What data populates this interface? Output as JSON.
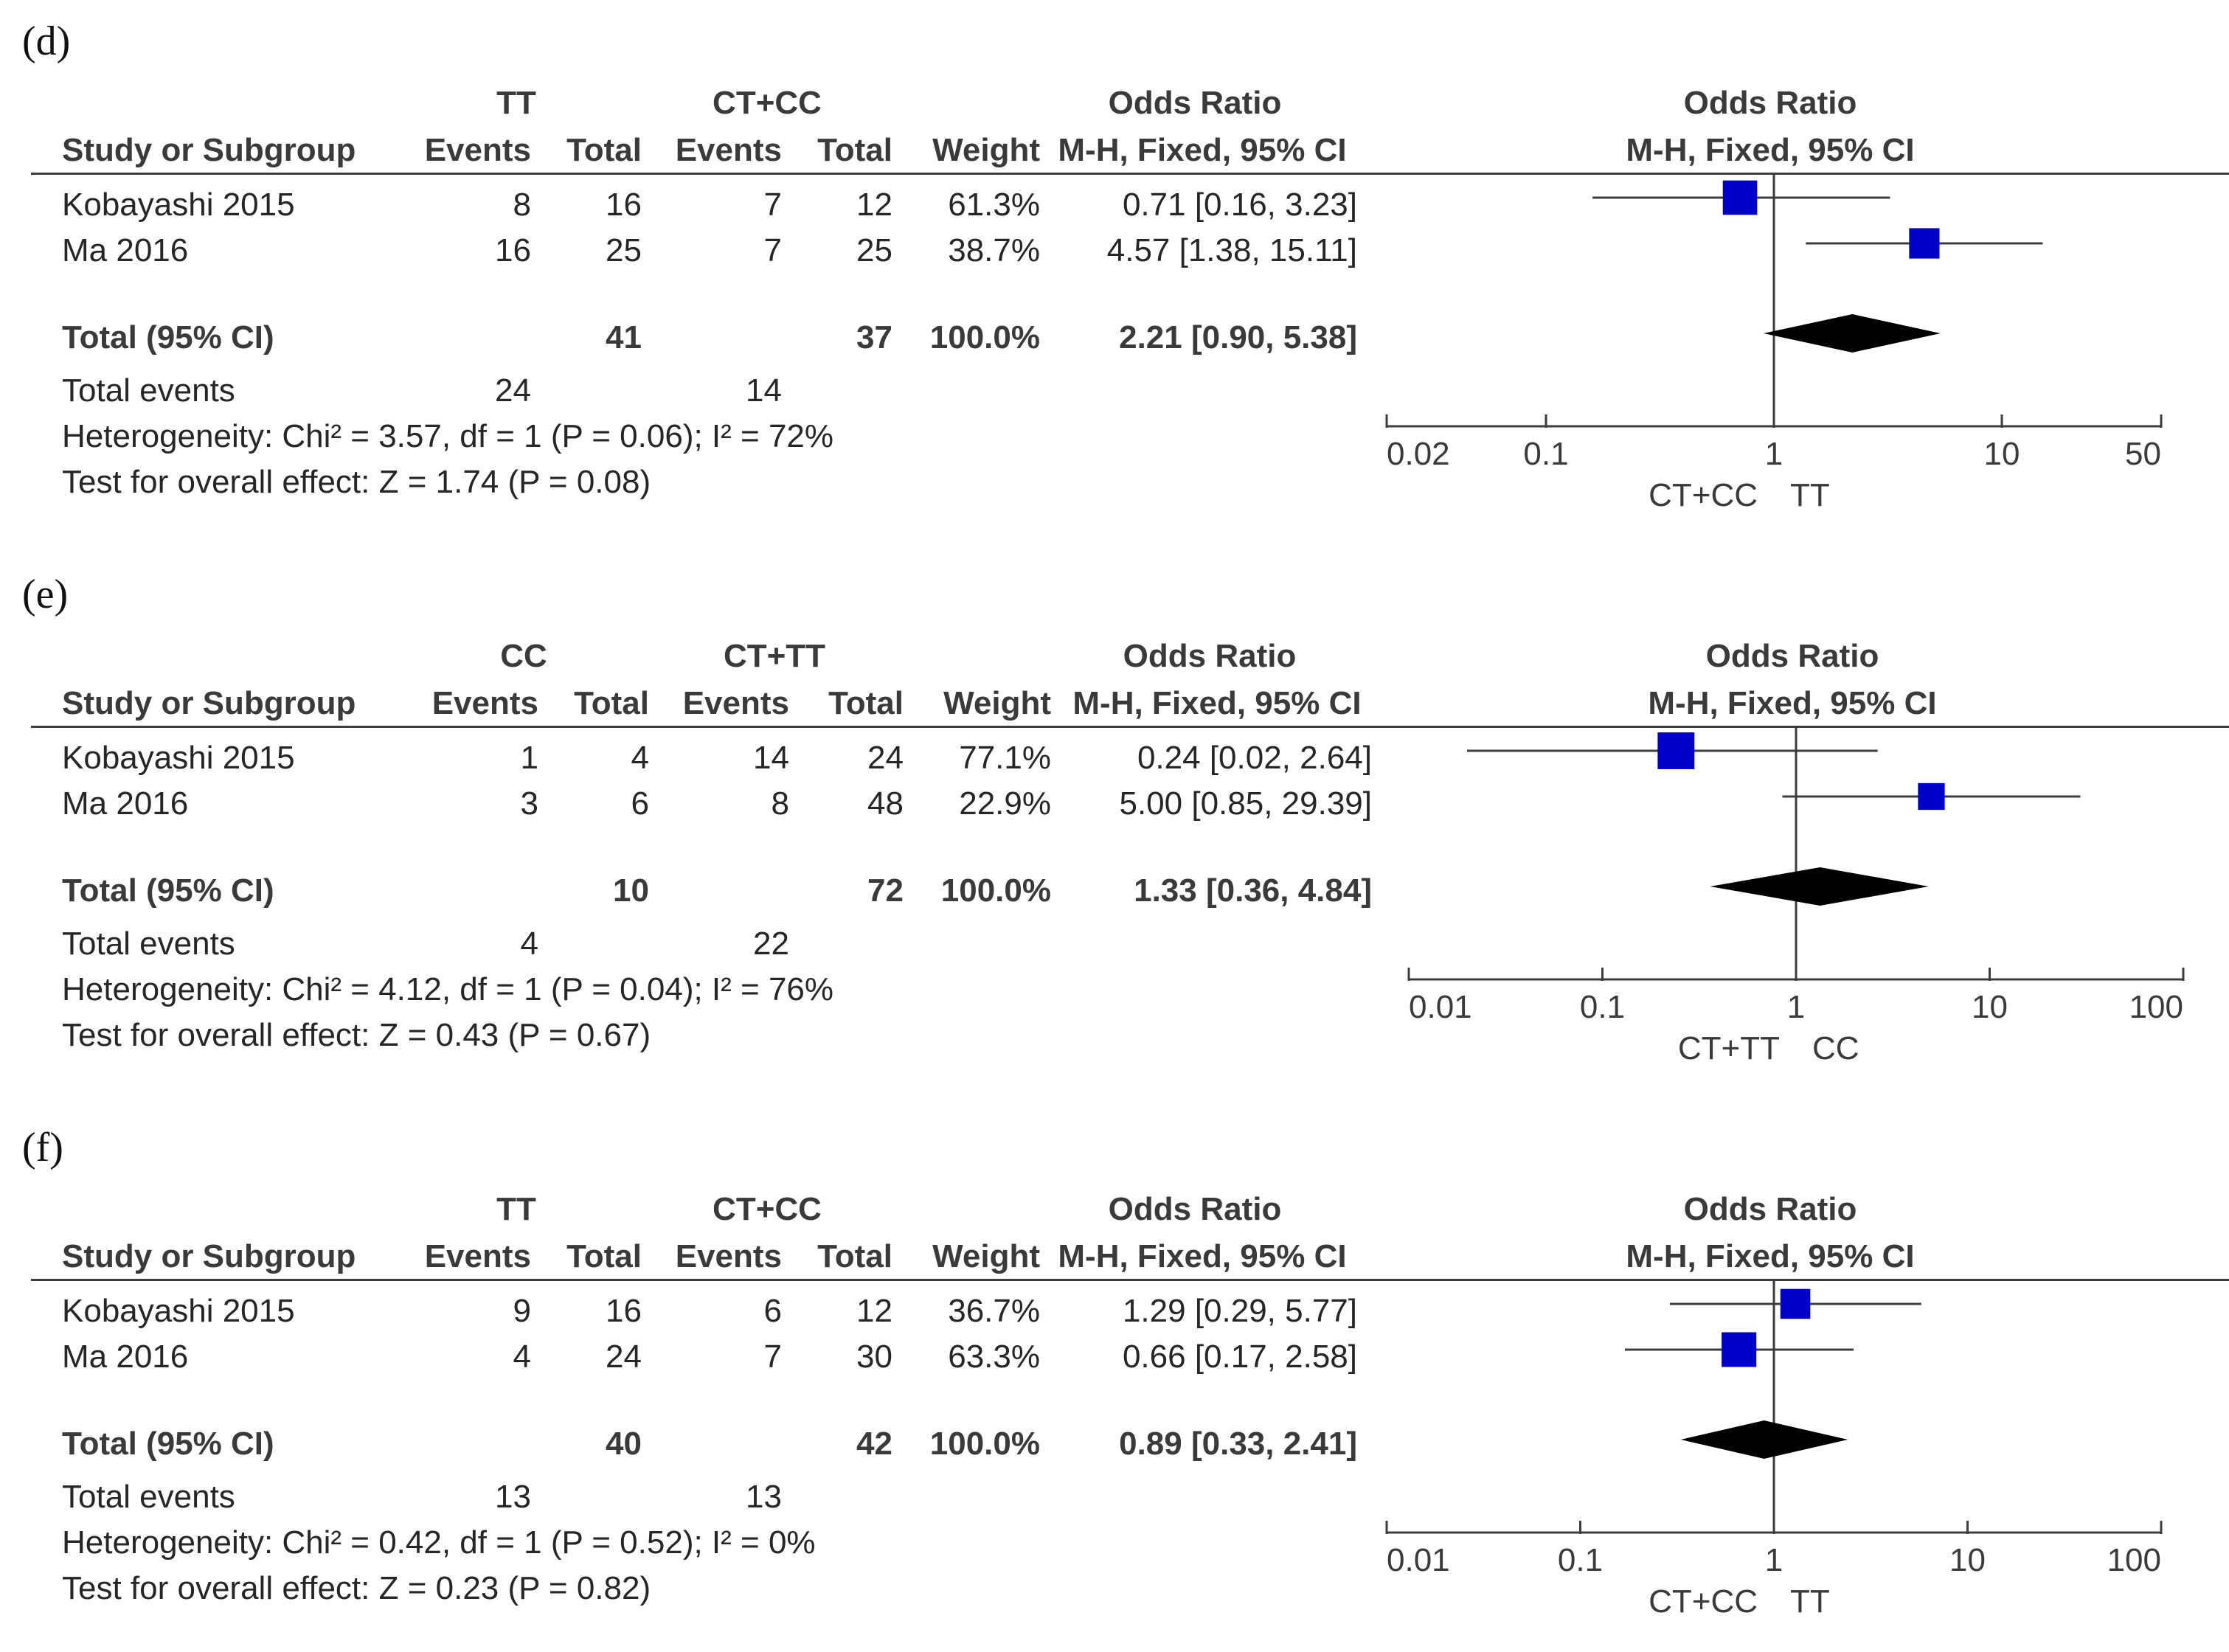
{
  "chart_data": [
    {
      "type": "forest",
      "panel_label": "(d)",
      "group1": "TT",
      "group2": "CT+CC",
      "headers": {
        "study": "Study or Subgroup",
        "events": "Events",
        "total": "Total",
        "weight": "Weight",
        "or_title": "Odds Ratio",
        "or_method": "M-H, Fixed, 95% CI"
      },
      "studies": [
        {
          "name": "Kobayashi 2015",
          "e1": "8",
          "t1": "16",
          "e2": "7",
          "t2": "12",
          "weight": "61.3%",
          "ci_text": "0.71 [0.16, 3.23]",
          "or": 0.71,
          "lo": 0.16,
          "hi": 3.23,
          "w": 61.3
        },
        {
          "name": "Ma 2016",
          "e1": "16",
          "t1": "25",
          "e2": "7",
          "t2": "25",
          "weight": "38.7%",
          "ci_text": "4.57 [1.38, 15.11]",
          "or": 4.57,
          "lo": 1.38,
          "hi": 15.11,
          "w": 38.7
        }
      ],
      "total": {
        "label": "Total (95% CI)",
        "t1": "41",
        "t2": "37",
        "weight": "100.0%",
        "ci_text": "2.21 [0.90, 5.38]",
        "or": 2.21,
        "lo": 0.9,
        "hi": 5.38
      },
      "total_events": {
        "label": "Total events",
        "e1": "24",
        "e2": "14"
      },
      "heterogeneity": "Heterogeneity: Chi² = 3.57, df = 1 (P = 0.06); I² = 72%",
      "overall": "Test for overall effect: Z = 1.74 (P = 0.08)",
      "axis": {
        "scale": "log",
        "min": 0.02,
        "max": 50,
        "ticks": [
          0.02,
          0.1,
          1,
          10,
          50
        ],
        "tick_labels": [
          "0.02",
          "0.1",
          "1",
          "10",
          "50"
        ],
        "favours_left": "CT+CC",
        "favours_right": "TT"
      }
    },
    {
      "type": "forest",
      "panel_label": "(e)",
      "group1": "CC",
      "group2": "CT+TT",
      "headers": {
        "study": "Study or Subgroup",
        "events": "Events",
        "total": "Total",
        "weight": "Weight",
        "or_title": "Odds Ratio",
        "or_method": "M-H, Fixed, 95% CI"
      },
      "studies": [
        {
          "name": "Kobayashi 2015",
          "e1": "1",
          "t1": "4",
          "e2": "14",
          "t2": "24",
          "weight": "77.1%",
          "ci_text": "0.24 [0.02, 2.64]",
          "or": 0.24,
          "lo": 0.02,
          "hi": 2.64,
          "w": 77.1
        },
        {
          "name": "Ma 2016",
          "e1": "3",
          "t1": "6",
          "e2": "8",
          "t2": "48",
          "weight": "22.9%",
          "ci_text": "5.00 [0.85, 29.39]",
          "or": 5.0,
          "lo": 0.85,
          "hi": 29.39,
          "w": 22.9
        }
      ],
      "total": {
        "label": "Total (95% CI)",
        "t1": "10",
        "t2": "72",
        "weight": "100.0%",
        "ci_text": "1.33 [0.36, 4.84]",
        "or": 1.33,
        "lo": 0.36,
        "hi": 4.84
      },
      "total_events": {
        "label": "Total events",
        "e1": "4",
        "e2": "22"
      },
      "heterogeneity": "Heterogeneity: Chi² = 4.12, df = 1 (P = 0.04); I² = 76%",
      "overall": "Test for overall effect: Z = 0.43 (P = 0.67)",
      "axis": {
        "scale": "log",
        "min": 0.01,
        "max": 100,
        "ticks": [
          0.01,
          0.1,
          1,
          10,
          100
        ],
        "tick_labels": [
          "0.01",
          "0.1",
          "1",
          "10",
          "100"
        ],
        "favours_left": "CT+TT",
        "favours_right": "CC"
      }
    },
    {
      "type": "forest",
      "panel_label": "(f)",
      "group1": "TT",
      "group2": "CT+CC",
      "headers": {
        "study": "Study or Subgroup",
        "events": "Events",
        "total": "Total",
        "weight": "Weight",
        "or_title": "Odds Ratio",
        "or_method": "M-H, Fixed, 95% CI"
      },
      "studies": [
        {
          "name": "Kobayashi 2015",
          "e1": "9",
          "t1": "16",
          "e2": "6",
          "t2": "12",
          "weight": "36.7%",
          "ci_text": "1.29 [0.29, 5.77]",
          "or": 1.29,
          "lo": 0.29,
          "hi": 5.77,
          "w": 36.7
        },
        {
          "name": "Ma 2016",
          "e1": "4",
          "t1": "24",
          "e2": "7",
          "t2": "30",
          "weight": "63.3%",
          "ci_text": "0.66 [0.17, 2.58]",
          "or": 0.66,
          "lo": 0.17,
          "hi": 2.58,
          "w": 63.3
        }
      ],
      "total": {
        "label": "Total (95% CI)",
        "t1": "40",
        "t2": "42",
        "weight": "100.0%",
        "ci_text": "0.89 [0.33, 2.41]",
        "or": 0.89,
        "lo": 0.33,
        "hi": 2.41
      },
      "total_events": {
        "label": "Total events",
        "e1": "13",
        "e2": "13"
      },
      "heterogeneity": "Heterogeneity: Chi² = 0.42, df = 1 (P = 0.52); I² = 0%",
      "overall": "Test for overall effect: Z = 0.23 (P = 0.82)",
      "axis": {
        "scale": "log",
        "min": 0.01,
        "max": 100,
        "ticks": [
          0.01,
          0.1,
          1,
          10,
          100
        ],
        "tick_labels": [
          "0.01",
          "0.1",
          "1",
          "10",
          "100"
        ],
        "favours_left": "CT+CC",
        "favours_right": "TT"
      }
    }
  ],
  "colors": {
    "square": "#0000c8",
    "diamond": "#000000",
    "line": "#3c3c3c"
  }
}
